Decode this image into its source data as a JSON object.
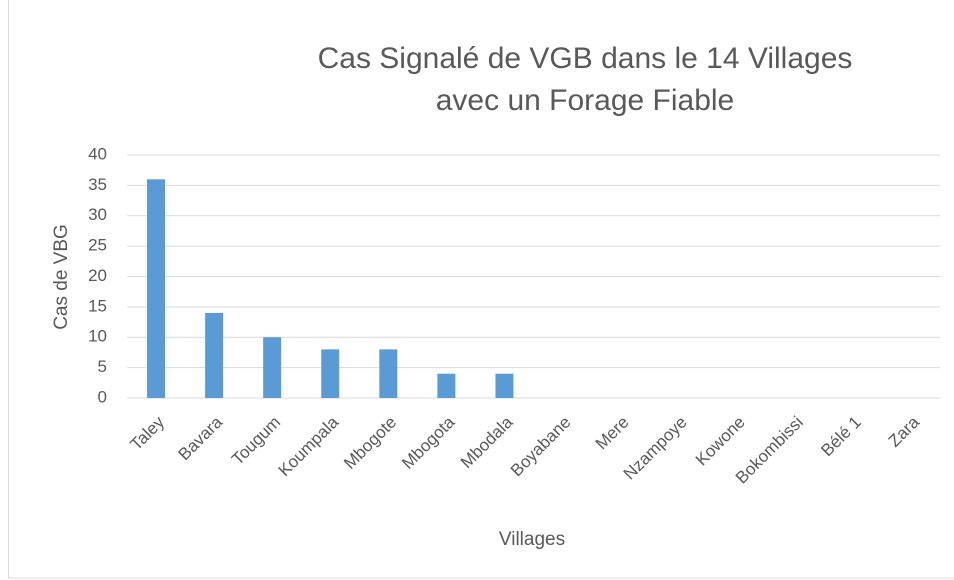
{
  "chart_data": {
    "type": "bar",
    "title": "Cas Signalé de VGB dans le 14 Villages avec un Forage Fiable",
    "xlabel": "Villages",
    "ylabel": "Cas de VBG",
    "categories": [
      "Taley",
      "Bavara",
      "Tougum",
      "Koumpala",
      "Mbogote",
      "Mbogota",
      "Mbodala",
      "Boyabane",
      "Mere",
      "Nzampoye",
      "Kowone",
      "Bokombissi",
      "Bélé 1",
      "Zara"
    ],
    "values": [
      36,
      14,
      10,
      8,
      8,
      4,
      4,
      0,
      0,
      0,
      0,
      0,
      0,
      0
    ],
    "color": "#5b9bd5",
    "ylim": [
      0,
      40
    ],
    "yticks": [
      0,
      5,
      10,
      15,
      20,
      25,
      30,
      35,
      40
    ],
    "grid": true
  }
}
